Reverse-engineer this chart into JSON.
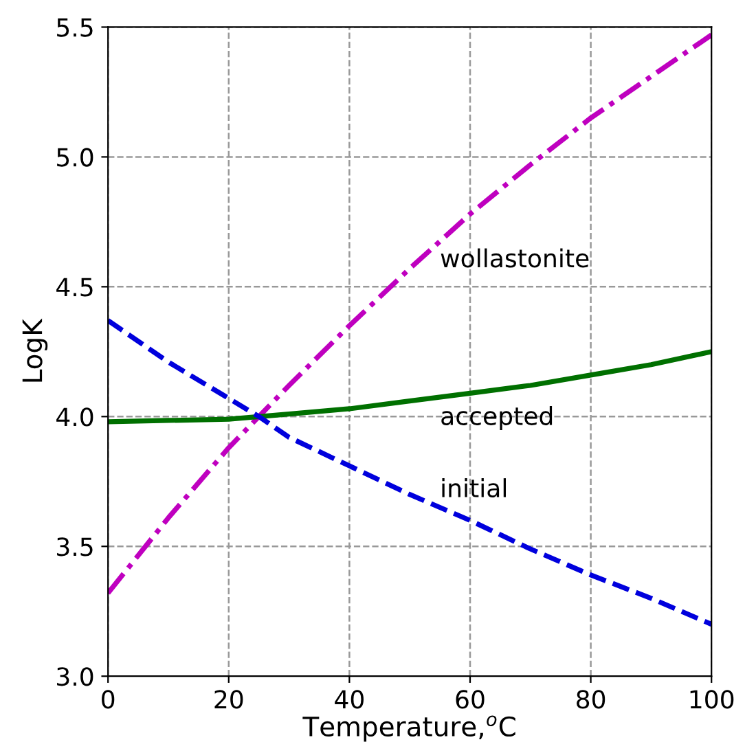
{
  "chart_data": {
    "type": "line",
    "xlabel": "Temperature,$^{o}$C",
    "ylabel": "LogK",
    "x": [
      0,
      10,
      20,
      25,
      30,
      40,
      50,
      60,
      70,
      80,
      90,
      100
    ],
    "series": [
      {
        "name": "wollastonite",
        "color": "#bf00bf",
        "line_style": "dashdot",
        "values": [
          3.32,
          3.61,
          3.88,
          4.0,
          4.12,
          4.35,
          4.57,
          4.78,
          4.97,
          5.15,
          5.31,
          5.47
        ]
      },
      {
        "name": "accepted",
        "color": "#007000",
        "line_style": "solid",
        "values": [
          3.98,
          3.985,
          3.99,
          4.0,
          4.01,
          4.03,
          4.06,
          4.09,
          4.12,
          4.16,
          4.2,
          4.25
        ]
      },
      {
        "name": "initial",
        "color": "#0000dd",
        "line_style": "dashed",
        "values": [
          4.37,
          4.21,
          4.07,
          4.0,
          3.92,
          3.81,
          3.7,
          3.6,
          3.49,
          3.39,
          3.3,
          3.2
        ]
      }
    ],
    "xlim": [
      0,
      100
    ],
    "xticks": [
      0,
      20,
      40,
      60,
      80,
      100
    ],
    "ylim": [
      3.0,
      5.5
    ],
    "yticks": [
      {
        "value": 3.0,
        "label": "3.0"
      },
      {
        "value": 3.5,
        "label": "3.5"
      },
      {
        "value": 4.0,
        "label": "4.0"
      },
      {
        "value": 4.5,
        "label": "4.5"
      },
      {
        "value": 5.0,
        "label": "5.0"
      },
      {
        "value": 5.5,
        "label": "5.5"
      }
    ],
    "grid": true,
    "marker": "none"
  }
}
